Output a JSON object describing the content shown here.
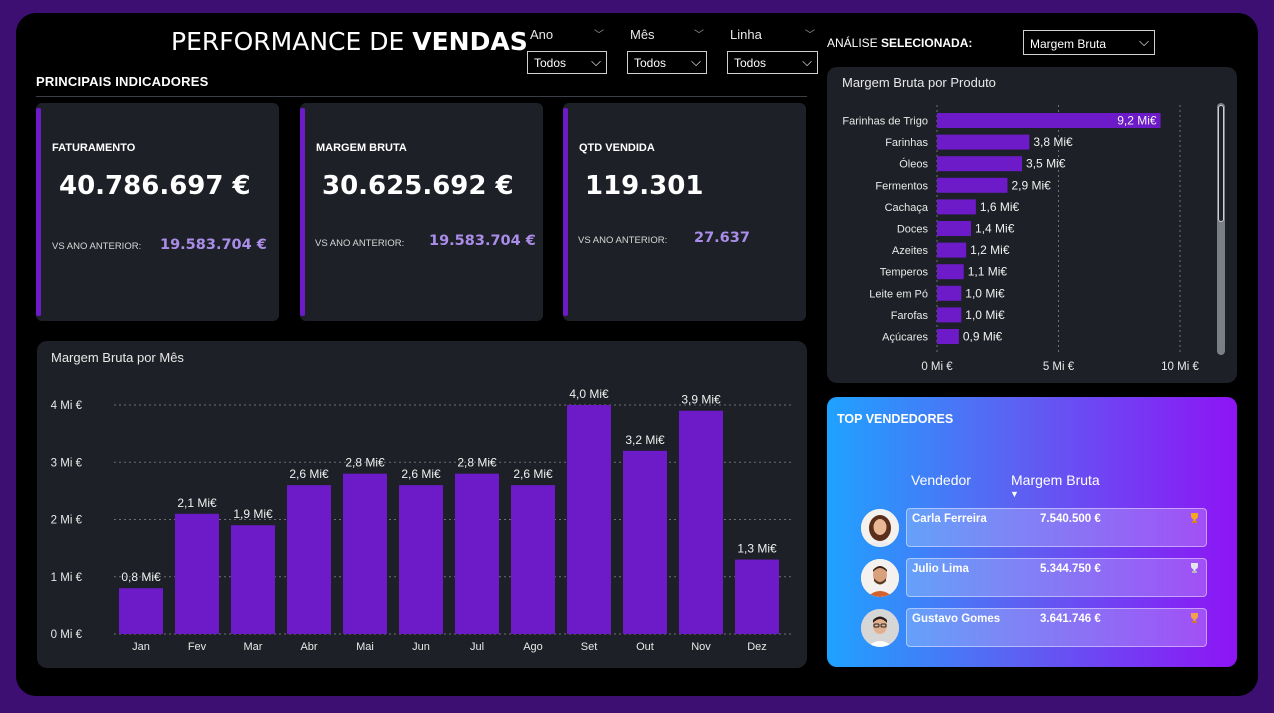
{
  "header": {
    "title_light": "PERFORMANCE DE",
    "title_bold": "VENDAS"
  },
  "filters": [
    {
      "label": "Ano",
      "value": "Todos"
    },
    {
      "label": "Mês",
      "value": "Todos"
    },
    {
      "label": "Linha",
      "value": "Todos"
    }
  ],
  "analysis": {
    "label_light": "ANÁLISE",
    "label_bold": "SELECIONADA:",
    "value": "Margem Bruta"
  },
  "indicators": {
    "title": "PRINCIPAIS INDICADORES",
    "cards": [
      {
        "label": "FATURAMENTO",
        "value": "40.786.697 €",
        "compare_label": "VS ANO ANTERIOR:",
        "compare_value": "19.583.704 €"
      },
      {
        "label": "MARGEM BRUTA",
        "value": "30.625.692 €",
        "compare_label": "VS ANO ANTERIOR:",
        "compare_value": "19.583.704 €"
      },
      {
        "label": "QTD VENDIDA",
        "value": "119.301",
        "compare_label": "VS ANO ANTERIOR:",
        "compare_value": "27.637"
      }
    ]
  },
  "colors": {
    "bar": "#6d1bc8",
    "card_bg": "#1d2026",
    "accent_text": "#a98de8"
  },
  "chart_data": [
    {
      "type": "bar",
      "title": "Margem Bruta por Mês",
      "categories": [
        "Jan",
        "Fev",
        "Mar",
        "Abr",
        "Mai",
        "Jun",
        "Jul",
        "Ago",
        "Set",
        "Out",
        "Nov",
        "Dez"
      ],
      "values": [
        0.8,
        2.1,
        1.9,
        2.6,
        2.8,
        2.6,
        2.8,
        2.6,
        4.0,
        3.2,
        3.9,
        1.3
      ],
      "data_labels": [
        "0,8 Mi€",
        "2,1 Mi€",
        "1,9 Mi€",
        "2,6 Mi€",
        "2,8 Mi€",
        "2,6 Mi€",
        "2,8 Mi€",
        "2,6 Mi€",
        "4,0 Mi€",
        "3,2 Mi€",
        "3,9 Mi€",
        "1,3 Mi€"
      ],
      "yticks": [
        0,
        1,
        2,
        3,
        4
      ],
      "ytick_labels": [
        "0 Mi €",
        "1 Mi €",
        "2 Mi €",
        "3 Mi €",
        "4 Mi €"
      ],
      "ylim": [
        0,
        4
      ],
      "grid": true
    },
    {
      "type": "bar",
      "orientation": "horizontal",
      "title": "Margem Bruta por Produto",
      "categories": [
        "Farinhas de Trigo",
        "Farinhas",
        "Óleos",
        "Fermentos",
        "Cachaça",
        "Doces",
        "Azeites",
        "Temperos",
        "Leite em Pó",
        "Farofas",
        "Açúcares"
      ],
      "values": [
        9.2,
        3.8,
        3.5,
        2.9,
        1.6,
        1.4,
        1.2,
        1.1,
        1.0,
        1.0,
        0.9
      ],
      "data_labels": [
        "9,2 Mi€",
        "3,8 Mi€",
        "3,5 Mi€",
        "2,9 Mi€",
        "1,6 Mi€",
        "1,4 Mi€",
        "1,2 Mi€",
        "1,1 Mi€",
        "1,0 Mi€",
        "1,0 Mi€",
        "0,9 Mi€"
      ],
      "xticks": [
        0,
        5,
        10
      ],
      "xtick_labels": [
        "0 Mi €",
        "5 Mi €",
        "10 Mi €"
      ],
      "xlim": [
        0,
        10
      ],
      "grid": true
    }
  ],
  "top_sellers": {
    "title": "TOP VENDEDORES",
    "col_seller": "Vendedor",
    "col_margin": "Margem Bruta",
    "rows": [
      {
        "name": "Carla Ferreira",
        "value": "7.540.500 €",
        "trophy": "gold-trophy-icon"
      },
      {
        "name": "Julio Lima",
        "value": "5.344.750 €",
        "trophy": "silver-trophy-icon"
      },
      {
        "name": "Gustavo Gomes",
        "value": "3.641.746 €",
        "trophy": "bronze-trophy-icon"
      }
    ]
  }
}
